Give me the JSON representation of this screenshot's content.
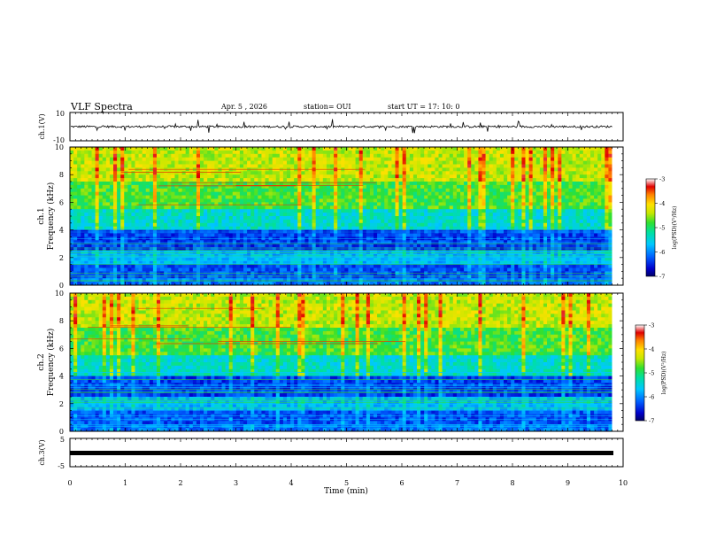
{
  "header": {
    "title": "VLF Spectra",
    "date": "Apr. 5 , 2026",
    "station": "station= OUI",
    "start": "start UT = 17: 10: 0"
  },
  "chart_data": [
    {
      "type": "line",
      "panel": "ch1-waveform",
      "ylabel": "ch.1(V)",
      "ylim": [
        -10,
        10
      ],
      "yticks": [
        "10",
        "-10"
      ],
      "xlim": [
        0,
        10
      ],
      "baseline_volts": 0,
      "noise_amplitude_volts": 1.5
    },
    {
      "type": "heatmap",
      "panel": "ch1-spectrogram",
      "ylabel": "ch.1\nFrequency (kHz)",
      "ylim": [
        0,
        10
      ],
      "yticks": [
        "0",
        "2",
        "4",
        "6",
        "8",
        "10"
      ],
      "xlim": [
        0,
        10
      ],
      "data_x_end_min": 9.8,
      "colorbar": {
        "label": "log(PSD)(V²/Hz)",
        "range": [
          -7,
          -3
        ],
        "ticks": [
          "-3",
          "-4",
          "-5",
          "-6",
          "-7"
        ],
        "colormap": [
          "#000066",
          "#0000cc",
          "#0060ff",
          "#00c8ff",
          "#00e0a0",
          "#30e030",
          "#c8e800",
          "#ffe000",
          "#ff8000",
          "#e00000",
          "#ffffff"
        ]
      }
    },
    {
      "type": "heatmap",
      "panel": "ch2-spectrogram",
      "ylabel": "ch.2\nFrequency (kHz)",
      "ylim": [
        0,
        10
      ],
      "yticks": [
        "0",
        "2",
        "4",
        "6",
        "8",
        "10"
      ],
      "xlim": [
        0,
        10
      ],
      "data_x_end_min": 9.8,
      "colorbar": {
        "label": "log(PSD)(V²/Hz)",
        "range": [
          -7,
          -3
        ],
        "ticks": [
          "-3",
          "-4",
          "-5",
          "-6",
          "-7"
        ]
      }
    },
    {
      "type": "line",
      "panel": "ch3-waveform",
      "ylabel": "ch.3(V)",
      "ylim": [
        -5,
        5
      ],
      "yticks": [
        "5",
        "-5"
      ],
      "xlim": [
        0,
        10
      ],
      "baseline_volts": -0.8,
      "xlabel": "Time (min)",
      "xticks": [
        "0",
        "1",
        "2",
        "3",
        "4",
        "5",
        "6",
        "7",
        "8",
        "9",
        "10"
      ]
    }
  ]
}
